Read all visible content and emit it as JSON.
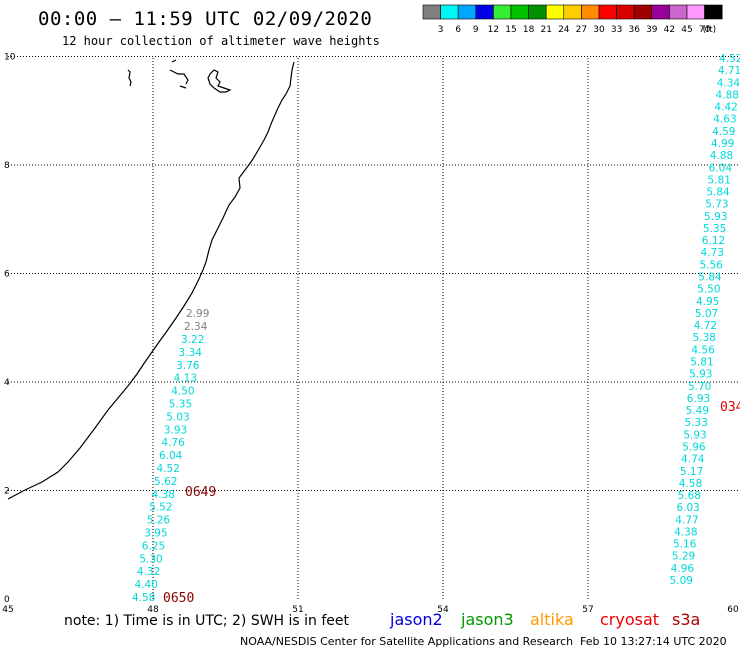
{
  "title": "00:00 – 11:59 UTC 02/09/2020",
  "subtitle": "12 hour collection of altimeter wave heights",
  "scale": {
    "unit": "(ft)",
    "bins": [
      {
        "label": "3",
        "color": "#7f7f7f"
      },
      {
        "label": "6",
        "color": "#00f5f5"
      },
      {
        "label": "9",
        "color": "#00a6ff"
      },
      {
        "label": "12",
        "color": "#0000e6"
      },
      {
        "label": "15",
        "color": "#33ee33"
      },
      {
        "label": "18",
        "color": "#00c000"
      },
      {
        "label": "21",
        "color": "#009000"
      },
      {
        "label": "24",
        "color": "#ffff00"
      },
      {
        "label": "27",
        "color": "#ffcc00"
      },
      {
        "label": "30",
        "color": "#ff8c00"
      },
      {
        "label": "33",
        "color": "#ff0000"
      },
      {
        "label": "36",
        "color": "#d60000"
      },
      {
        "label": "39",
        "color": "#a00000"
      },
      {
        "label": "42",
        "color": "#990099"
      },
      {
        "label": "45",
        "color": "#cc66cc"
      },
      {
        "label": "70",
        "color": "#ff99ff"
      },
      {
        "label": "",
        "color": "#000000"
      }
    ]
  },
  "map": {
    "x_ticks": [
      "45",
      "48",
      "51",
      "54",
      "57",
      "60"
    ],
    "y_ticks": [
      "0",
      "2",
      "4",
      "6",
      "8",
      "10"
    ]
  },
  "track_left": {
    "color": "#00d8d8",
    "gray_color": "#7f7f7f",
    "gray_values": [
      "2.99",
      "2.34"
    ],
    "values": [
      "3.22",
      "3.34",
      "3.76",
      "4.13",
      "4.50",
      "5.35",
      "5.03",
      "3.93",
      "4.76",
      "6.04",
      "4.52",
      "5.62",
      "4.38",
      "5.52",
      "5.26",
      "3.95",
      "6.25",
      "5.30",
      "4.32",
      "4.40",
      "4.58"
    ]
  },
  "track_right": {
    "color": "#00d8d8",
    "values": [
      "4.52",
      "4.71",
      "4.34",
      "4.88",
      "4.42",
      "4.63",
      "4.59",
      "4.99",
      "4.88",
      "6.04",
      "5.81",
      "5.84",
      "5.73",
      "5.93",
      "5.35",
      "6.12",
      "4.73",
      "5.56",
      "5.84",
      "5.50",
      "4.95",
      "5.07",
      "4.72",
      "5.38",
      "4.56",
      "5.81",
      "5.93",
      "5.70",
      "6.93",
      "5.49",
      "5.33",
      "5.93",
      "5.96",
      "4.74",
      "5.17",
      "4.58",
      "5.68",
      "6.03",
      "4.77",
      "4.38",
      "5.16",
      "5.29",
      "4.96",
      "5.09"
    ]
  },
  "time_labels": [
    {
      "text": "0649",
      "color": "#8b0000"
    },
    {
      "text": "0650",
      "color": "#8b0000"
    },
    {
      "text": "034",
      "color": "#dd0000"
    }
  ],
  "footer": {
    "note": "note: 1) Time is in UTC; 2) SWH is in feet",
    "satellites": [
      {
        "name": "jason2",
        "color": "#0000dd"
      },
      {
        "name": "jason3",
        "color": "#009900"
      },
      {
        "name": "altika",
        "color": "#ff9900"
      },
      {
        "name": "cryosat",
        "color": "#ee0000"
      },
      {
        "name": "s3a",
        "color": "#aa0000"
      }
    ],
    "credit": "NOAA/NESDIS Center for Satellite Applications and Research",
    "timestamp": "Feb 10 13:27:14 UTC 2020"
  }
}
